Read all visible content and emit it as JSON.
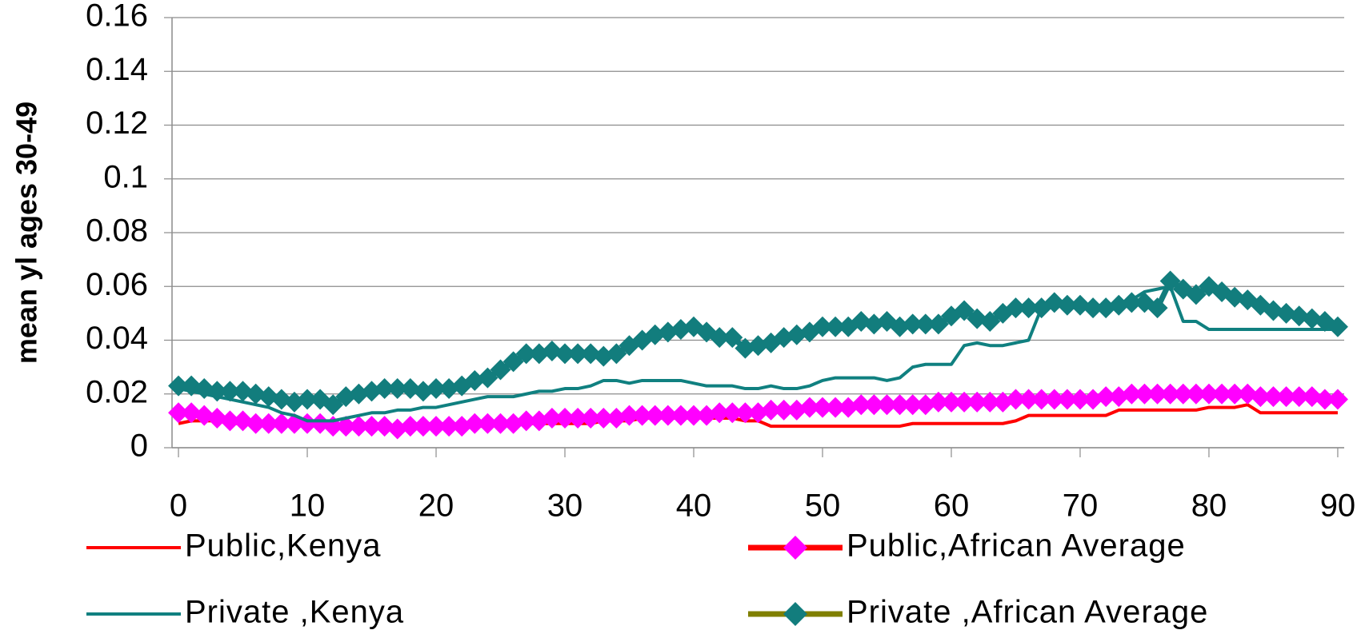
{
  "chart_data": {
    "type": "line",
    "y_label": "mean yl ages 30-49",
    "x": [
      0,
      1,
      2,
      3,
      4,
      5,
      6,
      7,
      8,
      9,
      10,
      11,
      12,
      13,
      14,
      15,
      16,
      17,
      18,
      19,
      20,
      21,
      22,
      23,
      24,
      25,
      26,
      27,
      28,
      29,
      30,
      31,
      32,
      33,
      34,
      35,
      36,
      37,
      38,
      39,
      40,
      41,
      42,
      43,
      44,
      45,
      46,
      47,
      48,
      49,
      50,
      51,
      52,
      53,
      54,
      55,
      56,
      57,
      58,
      59,
      60,
      61,
      62,
      63,
      64,
      65,
      66,
      67,
      68,
      69,
      70,
      71,
      72,
      73,
      74,
      75,
      76,
      77,
      78,
      79,
      80,
      81,
      82,
      83,
      84,
      85,
      86,
      87,
      88,
      89,
      90
    ],
    "xlim": [
      -0.5,
      90.5
    ],
    "xticks": [
      0,
      10,
      20,
      30,
      40,
      50,
      60,
      70,
      80,
      90
    ],
    "ylim": [
      0,
      0.16
    ],
    "yticks": [
      0,
      0.02,
      0.04,
      0.06,
      0.08,
      0.1,
      0.12,
      0.14,
      0.16
    ],
    "grid": true,
    "legend": "bottom",
    "series": [
      {
        "name": "Public,Kenya",
        "color": "#ff0000",
        "width": 4,
        "values": [
          0.009,
          0.01,
          0.01,
          0.01,
          0.009,
          0.009,
          0.009,
          0.009,
          0.009,
          0.009,
          0.009,
          0.009,
          0.008,
          0.008,
          0.008,
          0.008,
          0.008,
          0.008,
          0.008,
          0.008,
          0.008,
          0.008,
          0.008,
          0.008,
          0.008,
          0.009,
          0.009,
          0.009,
          0.009,
          0.009,
          0.009,
          0.009,
          0.009,
          0.01,
          0.01,
          0.01,
          0.011,
          0.011,
          0.011,
          0.011,
          0.011,
          0.011,
          0.011,
          0.011,
          0.01,
          0.01,
          0.008,
          0.008,
          0.008,
          0.008,
          0.008,
          0.008,
          0.008,
          0.008,
          0.008,
          0.008,
          0.008,
          0.009,
          0.009,
          0.009,
          0.009,
          0.009,
          0.009,
          0.009,
          0.009,
          0.01,
          0.012,
          0.012,
          0.012,
          0.012,
          0.012,
          0.012,
          0.012,
          0.014,
          0.014,
          0.014,
          0.014,
          0.014,
          0.014,
          0.014,
          0.015,
          0.015,
          0.015,
          0.016,
          0.013,
          0.013,
          0.013,
          0.013,
          0.013,
          0.013,
          0.013
        ]
      },
      {
        "name": "Public,African Average",
        "color": "#ff0000",
        "marker_color": "#ff00ff",
        "width": 7,
        "values": [
          0.013,
          0.013,
          0.012,
          0.011,
          0.01,
          0.01,
          0.009,
          0.009,
          0.009,
          0.009,
          0.009,
          0.009,
          0.008,
          0.008,
          0.008,
          0.008,
          0.008,
          0.007,
          0.008,
          0.008,
          0.008,
          0.008,
          0.008,
          0.009,
          0.009,
          0.009,
          0.009,
          0.01,
          0.01,
          0.011,
          0.011,
          0.011,
          0.011,
          0.011,
          0.011,
          0.012,
          0.012,
          0.012,
          0.012,
          0.012,
          0.012,
          0.012,
          0.013,
          0.013,
          0.013,
          0.013,
          0.014,
          0.014,
          0.014,
          0.015,
          0.015,
          0.015,
          0.015,
          0.016,
          0.016,
          0.016,
          0.016,
          0.016,
          0.016,
          0.017,
          0.017,
          0.017,
          0.017,
          0.017,
          0.017,
          0.018,
          0.018,
          0.018,
          0.018,
          0.018,
          0.018,
          0.018,
          0.019,
          0.019,
          0.02,
          0.02,
          0.02,
          0.02,
          0.02,
          0.02,
          0.02,
          0.02,
          0.02,
          0.02,
          0.019,
          0.019,
          0.019,
          0.019,
          0.019,
          0.018,
          0.018
        ]
      },
      {
        "name": "Private ,Kenya",
        "color": "#108080",
        "width": 4,
        "values": [
          0.022,
          0.021,
          0.02,
          0.019,
          0.018,
          0.017,
          0.016,
          0.015,
          0.013,
          0.012,
          0.01,
          0.01,
          0.01,
          0.011,
          0.012,
          0.013,
          0.013,
          0.014,
          0.014,
          0.015,
          0.015,
          0.016,
          0.017,
          0.018,
          0.019,
          0.019,
          0.019,
          0.02,
          0.021,
          0.021,
          0.022,
          0.022,
          0.023,
          0.025,
          0.025,
          0.024,
          0.025,
          0.025,
          0.025,
          0.025,
          0.024,
          0.023,
          0.023,
          0.023,
          0.022,
          0.022,
          0.023,
          0.022,
          0.022,
          0.023,
          0.025,
          0.026,
          0.026,
          0.026,
          0.026,
          0.025,
          0.026,
          0.03,
          0.031,
          0.031,
          0.031,
          0.038,
          0.039,
          0.038,
          0.038,
          0.039,
          0.04,
          0.052,
          0.054,
          0.053,
          0.052,
          0.052,
          0.052,
          0.053,
          0.055,
          0.058,
          0.059,
          0.06,
          0.047,
          0.047,
          0.044,
          0.044,
          0.044,
          0.044,
          0.044,
          0.044,
          0.044,
          0.044,
          0.044,
          0.044,
          0.044
        ]
      },
      {
        "name": "Private ,African Average",
        "color": "#808000",
        "marker_color": "#127d7d",
        "width": 7,
        "values": [
          0.023,
          0.023,
          0.022,
          0.021,
          0.021,
          0.021,
          0.02,
          0.019,
          0.018,
          0.017,
          0.018,
          0.018,
          0.016,
          0.019,
          0.02,
          0.021,
          0.022,
          0.022,
          0.022,
          0.021,
          0.022,
          0.022,
          0.023,
          0.025,
          0.026,
          0.029,
          0.032,
          0.035,
          0.035,
          0.036,
          0.035,
          0.035,
          0.035,
          0.034,
          0.035,
          0.038,
          0.04,
          0.042,
          0.043,
          0.044,
          0.045,
          0.043,
          0.041,
          0.041,
          0.037,
          0.038,
          0.039,
          0.041,
          0.042,
          0.043,
          0.045,
          0.045,
          0.045,
          0.047,
          0.046,
          0.047,
          0.045,
          0.046,
          0.046,
          0.046,
          0.049,
          0.051,
          0.048,
          0.047,
          0.05,
          0.052,
          0.052,
          0.052,
          0.054,
          0.053,
          0.053,
          0.052,
          0.052,
          0.053,
          0.054,
          0.054,
          0.052,
          0.062,
          0.059,
          0.057,
          0.06,
          0.058,
          0.056,
          0.055,
          0.053,
          0.051,
          0.05,
          0.049,
          0.048,
          0.047,
          0.045
        ]
      }
    ]
  }
}
